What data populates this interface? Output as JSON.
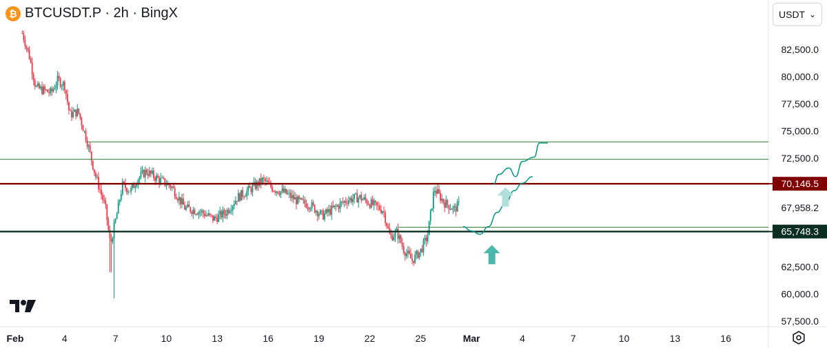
{
  "header": {
    "symbol_title": "BTCUSDT.P · 2h · BingX",
    "coin_icon": "bitcoin-icon",
    "coin_glyph": "₿"
  },
  "currency_selector": {
    "value": "USDT"
  },
  "icons": {
    "logo": "tradingview-logo",
    "settings": "settings-gear-icon"
  },
  "colors": {
    "up": "#089981",
    "down": "#f23645",
    "resistance": "#800000",
    "support": "#0a2e22",
    "level_line": "#2e7d32",
    "projection": "#009688",
    "arrow_dark": "#4db6ac",
    "arrow_light": "#b2dfdb",
    "axis_text": "#131722",
    "current_price_label": "#131722"
  },
  "chart_data": {
    "type": "candlestick",
    "title": "BTCUSDT.P · 2h · BingX",
    "xlabel": "",
    "ylabel": "",
    "ylim": [
      56800,
      85500
    ],
    "y_ticks": [
      "82,500.0",
      "80,000.0",
      "77,500.0",
      "75,000.0",
      "72,500.0",
      "67,958.2",
      "62,500.0",
      "60,000.0",
      "57,500.0"
    ],
    "y_tick_values": [
      82500,
      80000,
      77500,
      75000,
      72500,
      67958.2,
      62500,
      60000,
      57500
    ],
    "x_day_range": [
      0.5,
      44.7
    ],
    "x_ticks": [
      {
        "label": "Feb",
        "day": 0
      },
      {
        "label": "4",
        "day": 3
      },
      {
        "label": "7",
        "day": 6
      },
      {
        "label": "10",
        "day": 9
      },
      {
        "label": "13",
        "day": 12
      },
      {
        "label": "16",
        "day": 15
      },
      {
        "label": "19",
        "day": 18
      },
      {
        "label": "22",
        "day": 21
      },
      {
        "label": "25",
        "day": 24
      },
      {
        "label": "Mar",
        "day": 27
      },
      {
        "label": "4",
        "day": 30
      },
      {
        "label": "7",
        "day": 33
      },
      {
        "label": "10",
        "day": 36
      },
      {
        "label": "13",
        "day": 39
      },
      {
        "label": "16",
        "day": 42
      }
    ],
    "candle_interval_hours": 2,
    "price_path": [
      {
        "day": 0.5,
        "price": 84000
      },
      {
        "day": 0.9,
        "price": 82000
      },
      {
        "day": 1.3,
        "price": 79000
      },
      {
        "day": 2.2,
        "price": 78500
      },
      {
        "day": 2.6,
        "price": 79700
      },
      {
        "day": 3.0,
        "price": 79200
      },
      {
        "day": 3.3,
        "price": 76500
      },
      {
        "day": 3.8,
        "price": 76800
      },
      {
        "day": 4.3,
        "price": 74200
      },
      {
        "day": 4.8,
        "price": 71000
      },
      {
        "day": 5.4,
        "price": 68000
      },
      {
        "day": 5.7,
        "price": 64500
      },
      {
        "day": 6.1,
        "price": 67500
      },
      {
        "day": 6.4,
        "price": 70000
      },
      {
        "day": 6.9,
        "price": 69500
      },
      {
        "day": 7.3,
        "price": 70600
      },
      {
        "day": 7.8,
        "price": 71300
      },
      {
        "day": 8.5,
        "price": 70600
      },
      {
        "day": 9.3,
        "price": 69900
      },
      {
        "day": 10.1,
        "price": 67900
      },
      {
        "day": 11.0,
        "price": 67600
      },
      {
        "day": 11.8,
        "price": 66900
      },
      {
        "day": 12.5,
        "price": 67500
      },
      {
        "day": 13.2,
        "price": 68900
      },
      {
        "day": 14.0,
        "price": 69700
      },
      {
        "day": 14.7,
        "price": 70500
      },
      {
        "day": 15.3,
        "price": 69700
      },
      {
        "day": 16.0,
        "price": 69300
      },
      {
        "day": 16.8,
        "price": 68500
      },
      {
        "day": 17.5,
        "price": 68200
      },
      {
        "day": 18.2,
        "price": 67200
      },
      {
        "day": 18.9,
        "price": 67900
      },
      {
        "day": 19.7,
        "price": 68700
      },
      {
        "day": 20.4,
        "price": 68900
      },
      {
        "day": 21.2,
        "price": 68200
      },
      {
        "day": 21.8,
        "price": 67700
      },
      {
        "day": 22.2,
        "price": 65200
      },
      {
        "day": 22.6,
        "price": 65700
      },
      {
        "day": 23.0,
        "price": 64100
      },
      {
        "day": 23.5,
        "price": 63100
      },
      {
        "day": 24.0,
        "price": 64000
      },
      {
        "day": 24.4,
        "price": 65300
      },
      {
        "day": 24.8,
        "price": 69700
      },
      {
        "day": 25.4,
        "price": 68400
      },
      {
        "day": 26.0,
        "price": 67800
      },
      {
        "day": 26.3,
        "price": 68300
      }
    ],
    "horizontal_levels": [
      {
        "price": 74000,
        "style": "thin"
      },
      {
        "price": 72400,
        "style": "thin"
      },
      {
        "price": 70146.5,
        "style": "thick",
        "label": "70,146.5",
        "role": "resistance"
      },
      {
        "price": 66150,
        "style": "thin"
      },
      {
        "price": 65748.3,
        "style": "thick",
        "label": "65,748.3",
        "role": "support"
      }
    ],
    "price_labels": [
      {
        "text": "70,146.5",
        "price": 70146.5,
        "color": "#800000"
      },
      {
        "text": "65,748.3",
        "price": 65748.3,
        "color": "#0a2e22"
      },
      {
        "text": "67,958.2",
        "price": 67958.2,
        "color": "#131722"
      }
    ],
    "projections": [
      {
        "points": [
          [
            26.5,
            66200
          ],
          [
            27.0,
            65800
          ],
          [
            27.5,
            65500
          ],
          [
            28.0,
            66200
          ],
          [
            28.5,
            67500
          ],
          [
            29.0,
            68300
          ],
          [
            29.5,
            69500
          ],
          [
            30.0,
            70200
          ],
          [
            30.6,
            70800
          ]
        ]
      },
      {
        "points": [
          [
            28.3,
            70100
          ],
          [
            28.6,
            71000
          ],
          [
            29.2,
            71600
          ],
          [
            29.6,
            70800
          ],
          [
            30.0,
            72200
          ],
          [
            30.7,
            72600
          ],
          [
            31.0,
            73900
          ],
          [
            31.5,
            73900
          ]
        ]
      }
    ],
    "markers": [
      {
        "type": "up-arrow",
        "day": 28.2,
        "price": 63500,
        "shade": "dark"
      },
      {
        "type": "up-arrow",
        "day": 29.0,
        "price": 68800,
        "shade": "light"
      }
    ]
  }
}
